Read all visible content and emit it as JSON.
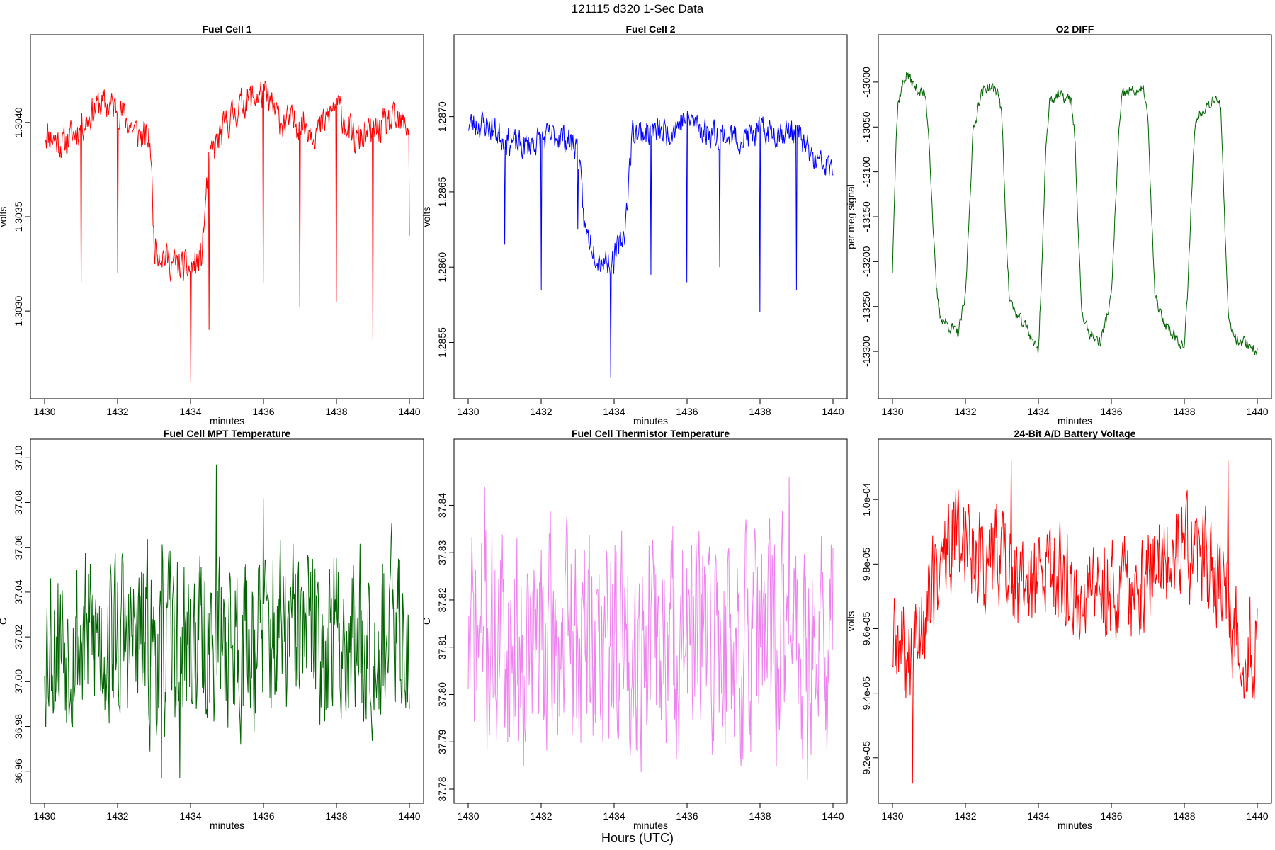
{
  "figure": {
    "title": "121115   d320   1-Sec Data",
    "bottom_label": "Hours (UTC)"
  },
  "chart_data": [
    {
      "type": "line",
      "title": "Fuel Cell 1",
      "xlabel": "minutes",
      "ylabel": "volts",
      "color": "#ff0000",
      "xlim": [
        1430,
        1440
      ],
      "ylim": [
        1.30261,
        1.30439
      ],
      "xticks": [
        1430,
        1432,
        1434,
        1436,
        1438,
        1440
      ],
      "xtick_labels": [
        "1430",
        "1432",
        "1434",
        "1436",
        "1438",
        "1440"
      ],
      "yticks": [
        1.303,
        1.3035,
        1.304
      ],
      "ytick_labels": [
        "1.3030",
        "1.3035",
        "1.3040"
      ],
      "x": [
        1430.0,
        1430.5,
        1431.0,
        1431.5,
        1432.0,
        1432.5,
        1432.9,
        1433.0,
        1433.5,
        1434.0,
        1434.3,
        1434.5,
        1435.0,
        1435.5,
        1436.0,
        1436.5,
        1437.0,
        1437.5,
        1438.0,
        1438.5,
        1439.0,
        1439.5,
        1440.0
      ],
      "values": [
        1.30395,
        1.30388,
        1.30398,
        1.3041,
        1.30408,
        1.30395,
        1.3039,
        1.30335,
        1.30325,
        1.30322,
        1.30328,
        1.3038,
        1.304,
        1.30412,
        1.30415,
        1.304,
        1.304,
        1.30395,
        1.3041,
        1.3039,
        1.30395,
        1.304,
        1.30398
      ],
      "noise": 0.00012,
      "spikes": [
        [
          1431.0,
          1.30315
        ],
        [
          1432.0,
          1.3032
        ],
        [
          1434.0,
          1.30262
        ],
        [
          1434.5,
          1.3029
        ],
        [
          1436.0,
          1.30315
        ],
        [
          1437.0,
          1.30302
        ],
        [
          1438.0,
          1.30305
        ],
        [
          1439.0,
          1.30285
        ],
        [
          1440.0,
          1.3034
        ]
      ],
      "seed": 11
    },
    {
      "type": "line",
      "title": "Fuel Cell 2",
      "xlabel": "minutes",
      "ylabel": "volts",
      "color": "#0000ff",
      "xlim": [
        1430,
        1440
      ],
      "ylim": [
        1.28522,
        1.28745
      ],
      "xticks": [
        1430,
        1432,
        1434,
        1436,
        1438,
        1440
      ],
      "xtick_labels": [
        "1430",
        "1432",
        "1434",
        "1436",
        "1438",
        "1440"
      ],
      "yticks": [
        1.2855,
        1.286,
        1.2865,
        1.287
      ],
      "ytick_labels": [
        "1.2855",
        "1.2860",
        "1.2865",
        "1.2870"
      ],
      "x": [
        1430.0,
        1430.5,
        1431.0,
        1431.5,
        1432.0,
        1432.5,
        1433.0,
        1433.2,
        1433.6,
        1434.0,
        1434.3,
        1434.5,
        1435.0,
        1435.5,
        1436.0,
        1436.5,
        1437.0,
        1437.5,
        1438.0,
        1438.5,
        1439.0,
        1439.5,
        1440.0
      ],
      "values": [
        1.28695,
        1.28695,
        1.28685,
        1.2868,
        1.28685,
        1.28688,
        1.2868,
        1.28625,
        1.28605,
        1.28605,
        1.28625,
        1.2869,
        1.2869,
        1.2869,
        1.287,
        1.2869,
        1.28688,
        1.28685,
        1.2869,
        1.2869,
        1.2869,
        1.2867,
        1.28665
      ],
      "noise": 0.00013,
      "spikes": [
        [
          1431.0,
          1.28615
        ],
        [
          1432.0,
          1.28585
        ],
        [
          1433.0,
          1.28625
        ],
        [
          1433.9,
          1.28527
        ],
        [
          1435.0,
          1.28595
        ],
        [
          1436.0,
          1.2859
        ],
        [
          1436.9,
          1.286
        ],
        [
          1438.0,
          1.2857
        ],
        [
          1439.0,
          1.28585
        ]
      ],
      "seed": 23
    },
    {
      "type": "line",
      "title": "O2 DIFF",
      "xlabel": "minutes",
      "ylabel": "per meg signal",
      "color": "#006400",
      "xlim": [
        1430,
        1440
      ],
      "ylim": [
        -13337,
        -12963
      ],
      "xticks": [
        1430,
        1432,
        1434,
        1436,
        1438,
        1440
      ],
      "xtick_labels": [
        "1430",
        "1432",
        "1434",
        "1436",
        "1438",
        "1440"
      ],
      "yticks": [
        -13300,
        -13250,
        -13200,
        -13150,
        -13100,
        -13050,
        -13000
      ],
      "ytick_labels": [
        "-13300",
        "-13250",
        "-13200",
        "-13150",
        "-13100",
        "-13050",
        "-13000"
      ],
      "x": [
        1430.0,
        1430.05,
        1430.1,
        1430.15,
        1430.2,
        1430.3,
        1430.4,
        1430.6,
        1430.9,
        1431.0,
        1431.1,
        1431.2,
        1431.3,
        1431.5,
        1431.8,
        1432.0,
        1432.1,
        1432.2,
        1432.4,
        1432.6,
        1432.9,
        1433.0,
        1433.1,
        1433.2,
        1433.4,
        1433.7,
        1434.0,
        1434.1,
        1434.2,
        1434.3,
        1434.5,
        1434.9,
        1435.0,
        1435.1,
        1435.2,
        1435.4,
        1435.7,
        1436.0,
        1436.1,
        1436.2,
        1436.3,
        1436.5,
        1436.9,
        1437.0,
        1437.1,
        1437.2,
        1437.4,
        1437.7,
        1438.0,
        1438.1,
        1438.2,
        1438.3,
        1438.5,
        1438.9,
        1439.0,
        1439.1,
        1439.2,
        1439.4,
        1439.7,
        1440.0
      ],
      "values": [
        -13210,
        -13130,
        -13060,
        -13025,
        -13015,
        -13000,
        -12990,
        -13005,
        -13015,
        -13060,
        -13150,
        -13230,
        -13260,
        -13270,
        -13280,
        -13240,
        -13150,
        -13060,
        -13015,
        -13005,
        -13010,
        -13040,
        -13150,
        -13240,
        -13260,
        -13275,
        -13300,
        -13200,
        -13080,
        -13020,
        -13015,
        -13020,
        -13060,
        -13180,
        -13260,
        -13280,
        -13290,
        -13240,
        -13150,
        -13060,
        -13015,
        -13010,
        -13010,
        -13040,
        -13150,
        -13240,
        -13265,
        -13280,
        -13295,
        -13230,
        -13120,
        -13045,
        -13030,
        -13015,
        -13030,
        -13150,
        -13260,
        -13285,
        -13290,
        -13300
      ],
      "noise": 9,
      "spikes": [],
      "seed": 37
    },
    {
      "type": "line",
      "title": "Fuel Cell MPT Temperature",
      "xlabel": "minutes",
      "ylabel": "C",
      "color": "#006400",
      "xlim": [
        1430,
        1440
      ],
      "ylim": [
        36.952,
        37.102
      ],
      "xticks": [
        1430,
        1432,
        1434,
        1436,
        1438,
        1440
      ],
      "xtick_labels": [
        "1430",
        "1432",
        "1434",
        "1436",
        "1438",
        "1440"
      ],
      "yticks": [
        36.96,
        36.98,
        37.0,
        37.02,
        37.04,
        37.06,
        37.08,
        37.1
      ],
      "ytick_labels": [
        "36.96",
        "36.98",
        "37.00",
        "37.02",
        "37.04",
        "37.06",
        "37.08",
        "37.10"
      ],
      "x": [
        1430.0,
        1432.0,
        1433.0,
        1434.0,
        1436.0,
        1438.0,
        1440.0
      ],
      "values": [
        37.02,
        37.02,
        37.015,
        37.018,
        37.02,
        37.02,
        37.022
      ],
      "noise": 0.055,
      "spikes": [
        [
          1434.7,
          37.097
        ],
        [
          1436.0,
          37.082
        ],
        [
          1433.2,
          36.957
        ],
        [
          1433.7,
          36.957
        ]
      ],
      "seed": 53
    },
    {
      "type": "line",
      "title": "Fuel Cell Thermistor Temperature",
      "xlabel": "minutes",
      "ylabel": "C",
      "color": "#ee82ee",
      "xlim": [
        1430,
        1440
      ],
      "ylim": [
        37.78,
        37.851
      ],
      "xticks": [
        1430,
        1432,
        1434,
        1436,
        1438,
        1440
      ],
      "xtick_labels": [
        "1430",
        "1432",
        "1434",
        "1436",
        "1438",
        "1440"
      ],
      "yticks": [
        37.78,
        37.79,
        37.8,
        37.81,
        37.82,
        37.83,
        37.84
      ],
      "ytick_labels": [
        "37.78",
        "37.79",
        "37.80",
        "37.81",
        "37.82",
        "37.83",
        "37.84"
      ],
      "x": [
        1430.0,
        1435.0,
        1440.0
      ],
      "values": [
        37.811,
        37.811,
        37.811
      ],
      "noise": 0.032,
      "spikes": [
        [
          1430.45,
          37.844
        ],
        [
          1438.8,
          37.846
        ],
        [
          1439.3,
          37.782
        ]
      ],
      "seed": 71
    },
    {
      "type": "line",
      "title": "24-Bit A/D Battery Voltage",
      "xlabel": "minutes",
      "ylabel": "volts",
      "color": "#ff0000",
      "xlim": [
        1430,
        1440
      ],
      "ylim": [
        9.103e-05,
        0.00010143
      ],
      "xticks": [
        1430,
        1432,
        1434,
        1436,
        1438,
        1440
      ],
      "xtick_labels": [
        "1430",
        "1432",
        "1434",
        "1436",
        "1438",
        "1440"
      ],
      "yticks": [
        9.2e-05,
        9.4e-05,
        9.6e-05,
        9.8e-05,
        0.0001
      ],
      "ytick_labels": [
        "9.2e-05",
        "9.4e-05",
        "9.6e-05",
        "9.8e-05",
        "1.0e-04"
      ],
      "x": [
        1430.0,
        1430.5,
        1431.0,
        1431.5,
        1432.0,
        1432.5,
        1433.0,
        1433.5,
        1434.0,
        1434.5,
        1435.0,
        1435.5,
        1436.0,
        1436.5,
        1437.0,
        1437.5,
        1438.0,
        1438.5,
        1439.0,
        1439.5,
        1440.0
      ],
      "values": [
        9.55e-05,
        9.5e-05,
        9.7e-05,
        9.85e-05,
        9.9e-05,
        9.8e-05,
        9.85e-05,
        9.7e-05,
        9.75e-05,
        9.8e-05,
        9.7e-05,
        9.7e-05,
        9.75e-05,
        9.7e-05,
        9.75e-05,
        9.85e-05,
        9.85e-05,
        9.8e-05,
        9.75e-05,
        9.55e-05,
        9.55e-05
      ],
      "noise": 2.2e-06,
      "spikes": [
        [
          1430.55,
          9.12e-05
        ],
        [
          1433.25,
          0.0001012
        ],
        [
          1439.2,
          0.0001012
        ]
      ],
      "seed": 89
    }
  ]
}
